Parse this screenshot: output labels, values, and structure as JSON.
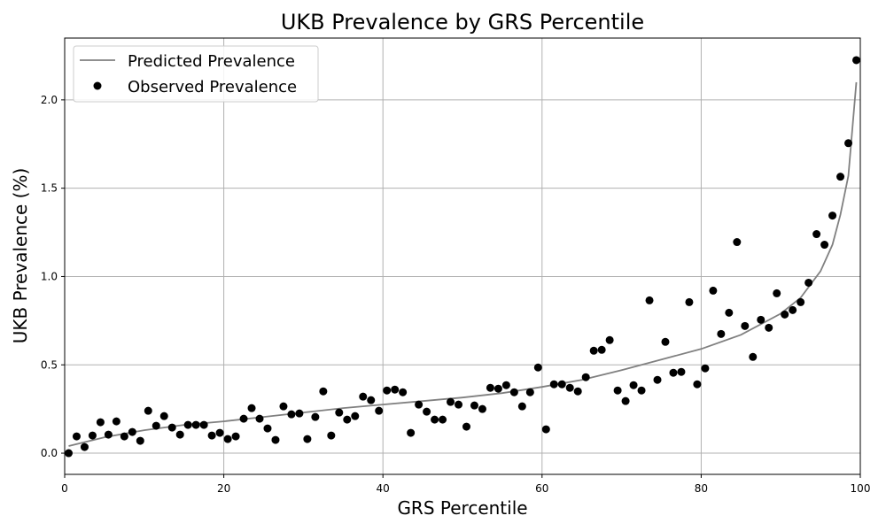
{
  "chart_data": {
    "type": "scatter",
    "title": "UKB Prevalence by GRS Percentile",
    "xlabel": "GRS Percentile",
    "ylabel": "UKB Prevalence (%)",
    "xlim": [
      0,
      100
    ],
    "ylim": [
      -0.12,
      2.35
    ],
    "xticks": [
      0,
      20,
      40,
      60,
      80,
      100
    ],
    "xtick_labels": [
      "0",
      "20",
      "40",
      "60",
      "80",
      "100"
    ],
    "yticks": [
      0,
      0.5,
      1,
      1.5,
      2
    ],
    "ytick_labels": [
      "0.0",
      "0.5",
      "1.0",
      "1.5",
      "2.0"
    ],
    "grid": true,
    "legend": {
      "placement": "top-left",
      "entries": [
        "Predicted Prevalence",
        "Observed Prevalence"
      ]
    },
    "series": [
      {
        "name": "Predicted Prevalence",
        "kind": "line",
        "color": "#808080",
        "x": [
          0.5,
          5,
          10,
          15,
          20,
          25,
          30,
          35,
          40,
          45,
          50,
          55,
          60,
          65,
          70,
          75,
          80,
          85,
          90,
          92.5,
          95,
          96.5,
          97.5,
          98.5,
          99.5
        ],
        "y": [
          0.04,
          0.09,
          0.13,
          0.16,
          0.18,
          0.205,
          0.23,
          0.255,
          0.275,
          0.295,
          0.315,
          0.34,
          0.375,
          0.415,
          0.47,
          0.53,
          0.59,
          0.67,
          0.79,
          0.88,
          1.03,
          1.18,
          1.35,
          1.57,
          2.1
        ]
      },
      {
        "name": "Observed Prevalence",
        "kind": "scatter",
        "color": "#000000",
        "x": [
          0.5,
          1.5,
          2.5,
          3.5,
          4.5,
          5.5,
          6.5,
          7.5,
          8.5,
          9.5,
          10.5,
          11.5,
          12.5,
          13.5,
          14.5,
          15.5,
          16.5,
          17.5,
          18.5,
          19.5,
          20.5,
          21.5,
          22.5,
          23.5,
          24.5,
          25.5,
          26.5,
          27.5,
          28.5,
          29.5,
          30.5,
          31.5,
          32.5,
          33.5,
          34.5,
          35.5,
          36.5,
          37.5,
          38.5,
          39.5,
          40.5,
          41.5,
          42.5,
          43.5,
          44.5,
          45.5,
          46.5,
          47.5,
          48.5,
          49.5,
          50.5,
          51.5,
          52.5,
          53.5,
          54.5,
          55.5,
          56.5,
          57.5,
          58.5,
          59.5,
          60.5,
          61.5,
          62.5,
          63.5,
          64.5,
          65.5,
          66.5,
          67.5,
          68.5,
          69.5,
          70.5,
          71.5,
          72.5,
          73.5,
          74.5,
          75.5,
          76.5,
          77.5,
          78.5,
          79.5,
          80.5,
          81.5,
          82.5,
          83.5,
          84.5,
          85.5,
          86.5,
          87.5,
          88.5,
          89.5,
          90.5,
          91.5,
          92.5,
          93.5,
          94.5,
          95.5,
          96.5,
          97.5,
          98.5,
          99.5
        ],
        "y": [
          0.0,
          0.095,
          0.035,
          0.1,
          0.175,
          0.105,
          0.18,
          0.095,
          0.12,
          0.07,
          0.24,
          0.155,
          0.21,
          0.145,
          0.105,
          0.16,
          0.16,
          0.16,
          0.1,
          0.115,
          0.08,
          0.095,
          0.195,
          0.255,
          0.195,
          0.14,
          0.075,
          0.265,
          0.22,
          0.225,
          0.08,
          0.205,
          0.35,
          0.1,
          0.23,
          0.19,
          0.21,
          0.32,
          0.3,
          0.24,
          0.355,
          0.36,
          0.345,
          0.115,
          0.275,
          0.235,
          0.19,
          0.19,
          0.29,
          0.275,
          0.15,
          0.27,
          0.25,
          0.37,
          0.365,
          0.385,
          0.345,
          0.265,
          0.345,
          0.485,
          0.135,
          0.39,
          0.39,
          0.37,
          0.35,
          0.43,
          0.58,
          0.585,
          0.64,
          0.355,
          0.295,
          0.385,
          0.355,
          0.865,
          0.415,
          0.63,
          0.455,
          0.46,
          0.855,
          0.39,
          0.48,
          0.92,
          0.675,
          0.795,
          1.195,
          0.72,
          0.545,
          0.755,
          0.71,
          0.905,
          0.785,
          0.81,
          0.855,
          0.965,
          1.24,
          1.18,
          1.345,
          1.565,
          1.755,
          2.225
        ]
      }
    ]
  }
}
